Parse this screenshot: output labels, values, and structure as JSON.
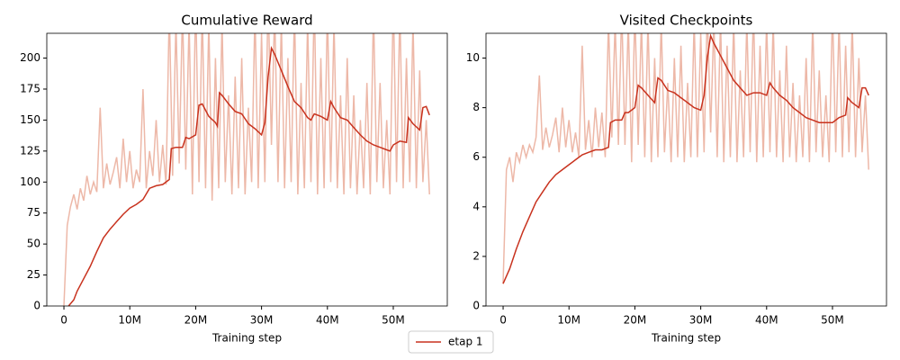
{
  "chart_data": [
    {
      "type": "line",
      "title": "Cumulative Reward",
      "xlabel": "Training step",
      "xlim": [
        -2.6,
        58.2
      ],
      "ylim": [
        0,
        220
      ],
      "xticks": [
        0,
        {
          "value": 10,
          "label": "10M"
        },
        {
          "value": 20,
          "label": "20M"
        },
        {
          "value": 30,
          "label": "30M"
        },
        {
          "value": 40,
          "label": "40M"
        },
        {
          "value": 50,
          "label": "50M"
        }
      ],
      "yticks": [
        0,
        25,
        50,
        75,
        100,
        125,
        150,
        175,
        200
      ],
      "legend": "lower center",
      "series": [
        {
          "color": "#edb8a8",
          "x": [
            0,
            0.5,
            1,
            1.5,
            2,
            2.5,
            3,
            3.5,
            4,
            4.5,
            5,
            5.5,
            6,
            6.5,
            7,
            7.5,
            8,
            8.5,
            9,
            9.5,
            10,
            10.5,
            11,
            11.5,
            12,
            12.5,
            13,
            13.5,
            14,
            14.5,
            15,
            15.5,
            16,
            16.5,
            17,
            17.5,
            18,
            18.5,
            19,
            19.5,
            20,
            20.5,
            21,
            21.5,
            22,
            22.5,
            23,
            23.5,
            24,
            24.5,
            25,
            25.5,
            26,
            26.5,
            27,
            27.5,
            28,
            28.5,
            29,
            29.5,
            30,
            30.5,
            31,
            31.5,
            32,
            32.5,
            33,
            33.5,
            34,
            34.5,
            35,
            35.5,
            36,
            36.5,
            37,
            37.5,
            38,
            38.5,
            39,
            39.5,
            40,
            40.5,
            41,
            41.5,
            42,
            42.5,
            43,
            43.5,
            44,
            44.5,
            45,
            45.5,
            46,
            46.5,
            47,
            47.5,
            48,
            48.5,
            49,
            49.5,
            50,
            50.5,
            51,
            51.5,
            52,
            52.5,
            53,
            53.5,
            54,
            54.5,
            55,
            55.5
          ],
          "values": [
            0,
            65,
            80,
            90,
            78,
            95,
            85,
            105,
            90,
            100,
            92,
            160,
            95,
            115,
            98,
            108,
            120,
            95,
            135,
            100,
            125,
            95,
            110,
            100,
            175,
            95,
            125,
            105,
            150,
            100,
            130,
            98,
            240,
            105,
            230,
            115,
            240,
            110,
            230,
            90,
            250,
            100,
            240,
            95,
            230,
            85,
            200,
            95,
            230,
            100,
            170,
            90,
            185,
            95,
            200,
            90,
            160,
            100,
            240,
            95,
            220,
            100,
            250,
            130,
            240,
            100,
            230,
            95,
            200,
            100,
            240,
            90,
            180,
            95,
            230,
            100,
            250,
            90,
            200,
            95,
            240,
            100,
            230,
            95,
            170,
            90,
            200,
            95,
            170,
            90,
            150,
            95,
            180,
            90,
            240,
            100,
            180,
            95,
            150,
            90,
            250,
            100,
            240,
            95,
            200,
            100,
            230,
            95,
            190,
            100,
            150,
            90
          ]
        },
        {
          "name": "etap 1",
          "color": "#c8321e",
          "x": [
            0.7,
            1.5,
            2,
            3,
            4,
            5,
            6,
            7,
            8,
            9,
            10,
            11,
            12,
            13,
            14,
            15,
            16,
            16.3,
            17,
            18,
            18.5,
            19,
            20,
            20.5,
            21,
            22,
            23,
            23.3,
            23.6,
            24,
            25,
            26,
            27,
            28,
            29,
            30,
            30.5,
            31,
            31.5,
            32,
            33,
            34,
            35,
            36,
            37,
            37.5,
            38,
            39,
            40,
            40.5,
            41,
            42,
            43,
            44,
            45,
            46,
            47,
            48,
            49,
            49.5,
            50,
            51,
            52,
            52.3,
            53,
            54,
            54.5,
            55,
            55.5
          ],
          "values": [
            0,
            5,
            12,
            22,
            32,
            44,
            55,
            62,
            68,
            74,
            79,
            82,
            86,
            95,
            97,
            98,
            102,
            127,
            128,
            128,
            136,
            135,
            138,
            162,
            163,
            153,
            148,
            145,
            172,
            170,
            163,
            157,
            155,
            147,
            143,
            138,
            148,
            185,
            208,
            203,
            190,
            177,
            165,
            160,
            152,
            150,
            155,
            153,
            150,
            165,
            160,
            152,
            150,
            144,
            138,
            133,
            130,
            128,
            126,
            125,
            130,
            133,
            132,
            152,
            147,
            142,
            160,
            161,
            154
          ]
        }
      ]
    },
    {
      "type": "line",
      "title": "Visited Checkpoints",
      "xlabel": "Training step",
      "xlim": [
        -2.6,
        58.2
      ],
      "ylim": [
        0,
        11
      ],
      "xticks": [
        0,
        {
          "value": 10,
          "label": "10M"
        },
        {
          "value": 20,
          "label": "20M"
        },
        {
          "value": 30,
          "label": "30M"
        },
        {
          "value": 40,
          "label": "40M"
        },
        {
          "value": 50,
          "label": "50M"
        }
      ],
      "yticks": [
        0,
        2,
        4,
        6,
        8,
        10
      ],
      "series": [
        {
          "color": "#edb8a8",
          "x": [
            0,
            0.5,
            1,
            1.5,
            2,
            2.5,
            3,
            3.5,
            4,
            4.5,
            5,
            5.5,
            6,
            6.5,
            7,
            7.5,
            8,
            8.5,
            9,
            9.5,
            10,
            10.5,
            11,
            11.5,
            12,
            12.5,
            13,
            13.5,
            14,
            14.5,
            15,
            15.5,
            16,
            16.5,
            17,
            17.5,
            18,
            18.5,
            19,
            19.5,
            20,
            20.5,
            21,
            21.5,
            22,
            22.5,
            23,
            23.5,
            24,
            24.5,
            25,
            25.5,
            26,
            26.5,
            27,
            27.5,
            28,
            28.5,
            29,
            29.5,
            30,
            30.5,
            31,
            31.5,
            32,
            32.5,
            33,
            33.5,
            34,
            34.5,
            35,
            35.5,
            36,
            36.5,
            37,
            37.5,
            38,
            38.5,
            39,
            39.5,
            40,
            40.5,
            41,
            41.5,
            42,
            42.5,
            43,
            43.5,
            44,
            44.5,
            45,
            45.5,
            46,
            46.5,
            47,
            47.5,
            48,
            48.5,
            49,
            49.5,
            50,
            50.5,
            51,
            51.5,
            52,
            52.5,
            53,
            53.5,
            54,
            54.5,
            55,
            55.5
          ],
          "values": [
            0.9,
            5.5,
            6.0,
            5.0,
            6.2,
            5.8,
            6.5,
            6.0,
            6.5,
            6.2,
            6.8,
            9.3,
            6.3,
            7.2,
            6.4,
            6.9,
            7.6,
            6.2,
            8.0,
            6.4,
            7.5,
            6.2,
            7.0,
            6.0,
            10.5,
            6.3,
            7.5,
            6.0,
            8.0,
            6.4,
            7.8,
            6.0,
            11.5,
            6.8,
            11.5,
            6.5,
            12,
            6.5,
            11.5,
            5.8,
            12,
            6.5,
            11.5,
            6.0,
            11.5,
            5.8,
            10.0,
            6.0,
            11.5,
            6.2,
            9.0,
            5.8,
            10.0,
            6.0,
            10.5,
            5.8,
            9.0,
            6.0,
            11.5,
            6.0,
            11.0,
            6.2,
            12,
            7.0,
            11.5,
            6.0,
            11.5,
            5.8,
            10.5,
            6.0,
            11.5,
            5.8,
            9.5,
            6.0,
            11.5,
            6.2,
            12,
            5.8,
            10.5,
            6.0,
            11.5,
            6.2,
            11.5,
            6.0,
            9.5,
            5.8,
            10.5,
            6.0,
            9.0,
            5.8,
            8.5,
            6.0,
            10.0,
            5.8,
            11.5,
            6.2,
            9.5,
            6.0,
            8.5,
            5.8,
            12,
            6.2,
            11.5,
            6.0,
            10.5,
            6.2,
            11.5,
            6.0,
            10.0,
            6.2,
            8.5,
            5.5
          ]
        },
        {
          "color": "#c8321e",
          "x": [
            0,
            1,
            2,
            3,
            4,
            5,
            6,
            7,
            8,
            9,
            10,
            11,
            12,
            13,
            14,
            15,
            16,
            16.3,
            17,
            18,
            18.5,
            19,
            20,
            20.5,
            21,
            22,
            23,
            23.5,
            24,
            25,
            26,
            27,
            28,
            29,
            30,
            30.5,
            31,
            31.5,
            32,
            33,
            34,
            35,
            36,
            37,
            38,
            39,
            40,
            40.5,
            41,
            42,
            43,
            44,
            45,
            46,
            47,
            48,
            49,
            50,
            51,
            52,
            52.3,
            53,
            54,
            54.5,
            55,
            55.5
          ],
          "values": [
            0.9,
            1.5,
            2.3,
            3.0,
            3.6,
            4.2,
            4.6,
            5.0,
            5.3,
            5.5,
            5.7,
            5.9,
            6.1,
            6.2,
            6.3,
            6.3,
            6.4,
            7.4,
            7.5,
            7.5,
            7.8,
            7.8,
            8.0,
            8.9,
            8.8,
            8.5,
            8.2,
            9.2,
            9.1,
            8.7,
            8.6,
            8.4,
            8.2,
            8.0,
            7.9,
            8.5,
            10.0,
            10.9,
            10.6,
            10.1,
            9.6,
            9.1,
            8.8,
            8.5,
            8.6,
            8.6,
            8.5,
            9.0,
            8.8,
            8.5,
            8.3,
            8.0,
            7.8,
            7.6,
            7.5,
            7.4,
            7.4,
            7.4,
            7.6,
            7.7,
            8.4,
            8.2,
            8.0,
            8.8,
            8.8,
            8.5
          ]
        }
      ]
    }
  ]
}
